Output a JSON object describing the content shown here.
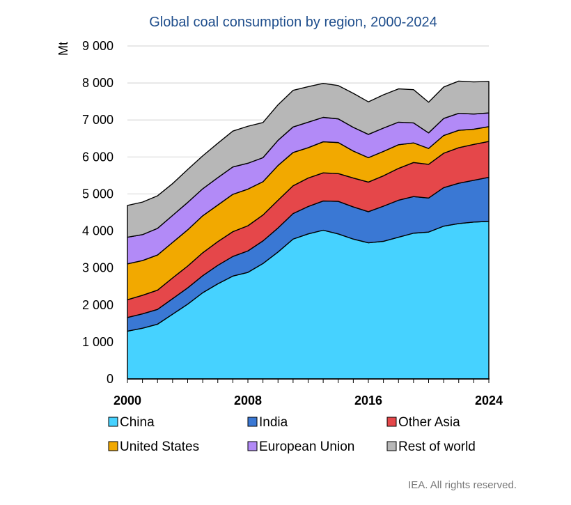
{
  "chart_data": {
    "type": "area",
    "stacked": true,
    "title": "Global coal consumption by region, 2000-2024",
    "ylabel": "Mt",
    "xlabel": "",
    "ylim": [
      0,
      9000
    ],
    "xlim": [
      2000,
      2024
    ],
    "yticks": [
      0,
      1000,
      2000,
      3000,
      4000,
      5000,
      6000,
      7000,
      8000,
      9000
    ],
    "ytick_labels": [
      "0",
      "1 000",
      "2 000",
      "3 000",
      "4 000",
      "5 000",
      "6 000",
      "7 000",
      "8 000",
      "9 000"
    ],
    "xticks": [
      2000,
      2008,
      2016,
      2024
    ],
    "xtick_labels": [
      "2000",
      "2008",
      "2016",
      "2024"
    ],
    "grid": "horizontal",
    "legend": "bottom",
    "x": [
      2000,
      2001,
      2002,
      2003,
      2004,
      2005,
      2006,
      2007,
      2008,
      2009,
      2010,
      2011,
      2012,
      2013,
      2014,
      2015,
      2016,
      2017,
      2018,
      2019,
      2020,
      2021,
      2022,
      2023,
      2024
    ],
    "series": [
      {
        "name": "China",
        "color": "#46d2ff",
        "values": [
          1290,
          1370,
          1480,
          1750,
          2020,
          2330,
          2570,
          2780,
          2880,
          3120,
          3430,
          3780,
          3920,
          4020,
          3920,
          3780,
          3680,
          3720,
          3830,
          3940,
          3970,
          4130,
          4200,
          4240,
          4260
        ]
      },
      {
        "name": "India",
        "color": "#3a78d4",
        "values": [
          370,
          390,
          400,
          420,
          440,
          460,
          500,
          530,
          580,
          610,
          650,
          690,
          740,
          790,
          880,
          870,
          840,
          950,
          1000,
          990,
          920,
          1040,
          1090,
          1130,
          1190
        ]
      },
      {
        "name": "Other Asia",
        "color": "#e5474a",
        "values": [
          480,
          500,
          520,
          560,
          590,
          620,
          640,
          670,
          680,
          700,
          750,
          750,
          770,
          760,
          750,
          780,
          800,
          820,
          860,
          920,
          910,
          930,
          960,
          970,
          970
        ]
      },
      {
        "name": "United States",
        "color": "#f2a900",
        "values": [
          970,
          940,
          950,
          960,
          980,
          1000,
          990,
          1010,
          990,
          900,
          940,
          900,
          820,
          840,
          840,
          730,
          660,
          660,
          640,
          530,
          430,
          480,
          470,
          410,
          400
        ]
      },
      {
        "name": "European Union",
        "color": "#b28af7",
        "values": [
          720,
          700,
          720,
          730,
          740,
          730,
          740,
          740,
          700,
          650,
          680,
          690,
          690,
          660,
          640,
          640,
          630,
          630,
          610,
          540,
          420,
          460,
          460,
          410,
          370
        ]
      },
      {
        "name": "Rest of world",
        "color": "#b7b7b7",
        "values": [
          860,
          880,
          880,
          860,
          890,
          890,
          930,
          970,
          1000,
          950,
          960,
          990,
          960,
          920,
          900,
          920,
          880,
          900,
          900,
          900,
          830,
          850,
          870,
          870,
          850
        ]
      }
    ]
  },
  "credit": "IEA. All rights reserved."
}
